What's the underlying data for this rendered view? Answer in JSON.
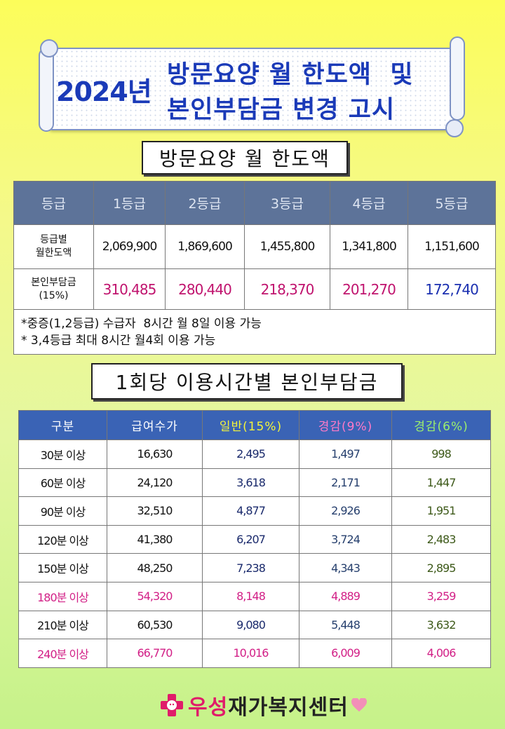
{
  "banner": {
    "year": "2024년",
    "line1": "방문요양 월 한도액  및",
    "line2": "본인부담금 변경 고시"
  },
  "section1": {
    "title": "방문요양 월 한도액",
    "headers": [
      "등급",
      "1등급",
      "2등급",
      "3등급",
      "4등급",
      "5등급"
    ],
    "limit_label_1": "등급별",
    "limit_label_2": "월한도액",
    "limits": [
      "2,069,900",
      "1,869,600",
      "1,455,800",
      "1,341,800",
      "1,151,600"
    ],
    "copay_label_1": "본인부담금",
    "copay_label_2": "(15%)",
    "copays": [
      "310,485",
      "280,440",
      "218,370",
      "201,270",
      "172,740"
    ],
    "note1": "*중증(1,2등급) 수급자  8시간 월 8일 이용 가능",
    "note2": "* 3,4등급 최대 8시간 월4회 이용 가능"
  },
  "section2": {
    "title": "1회당 이용시간별 본인부담금",
    "headers": [
      "구분",
      "급여수가",
      "일반(15%)",
      "경감(9%)",
      "경감(6%)"
    ],
    "rows": [
      [
        "30분 이상",
        "16,630",
        "2,495",
        "1,497",
        "998"
      ],
      [
        "60분 이상",
        "24,120",
        "3,618",
        "2,171",
        "1,447"
      ],
      [
        "90분 이상",
        "32,510",
        "4,877",
        "2,926",
        "1,951"
      ],
      [
        "120분 이상",
        "41,380",
        "6,207",
        "3,724",
        "2,483"
      ],
      [
        "150분 이상",
        "48,250",
        "7,238",
        "4,343",
        "2,895"
      ],
      [
        "180분 이상",
        "54,320",
        "8,148",
        "4,889",
        "3,259"
      ],
      [
        "210분 이상",
        "60,530",
        "9,080",
        "5,448",
        "3,632"
      ],
      [
        "240분 이상",
        "66,770",
        "10,016",
        "6,009",
        "4,006"
      ]
    ]
  },
  "footer": {
    "logo_accent": "우성",
    "logo_rest": "재가복지센터"
  },
  "colors": {
    "header1_bg": "#5d7399",
    "header2_bg": "#3a63b5",
    "banner_text": "#1a3ab8",
    "highlight_pink": "#d21f86"
  }
}
